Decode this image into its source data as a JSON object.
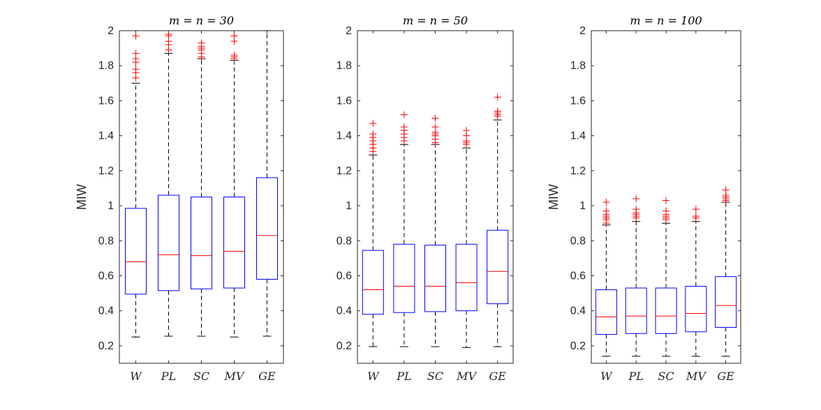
{
  "chart_data": [
    {
      "type": "boxplot",
      "title": "m = n = 30",
      "ylabel": "MIW",
      "ylim": [
        0.1,
        2.0
      ],
      "yticks": [
        0.2,
        0.4,
        0.6,
        0.8,
        1,
        1.2,
        1.4,
        1.6,
        1.8,
        2
      ],
      "categories": [
        "W",
        "PL",
        "SC",
        "MV",
        "GE"
      ],
      "boxes": [
        {
          "name": "W",
          "whisker_low": 0.25,
          "q1": 0.495,
          "median": 0.68,
          "q3": 0.985,
          "whisker_high": 1.7,
          "outliers": [
            1.73,
            1.76,
            1.78,
            1.82,
            1.84,
            1.87,
            1.97
          ]
        },
        {
          "name": "PL",
          "whisker_low": 0.255,
          "q1": 0.515,
          "median": 0.72,
          "q3": 1.06,
          "whisker_high": 1.87,
          "outliers": [
            1.89,
            1.92,
            1.94,
            1.97,
            1.98
          ]
        },
        {
          "name": "SC",
          "whisker_low": 0.255,
          "q1": 0.525,
          "median": 0.715,
          "q3": 1.05,
          "whisker_high": 1.84,
          "outliers": [
            1.85,
            1.87,
            1.89,
            1.9,
            1.91,
            1.93
          ]
        },
        {
          "name": "MV",
          "whisker_low": 0.25,
          "q1": 0.53,
          "median": 0.74,
          "q3": 1.05,
          "whisker_high": 1.83,
          "outliers": [
            1.84,
            1.85,
            1.86,
            1.94,
            1.97
          ]
        },
        {
          "name": "GE",
          "whisker_low": 0.255,
          "q1": 0.58,
          "median": 0.83,
          "q3": 1.16,
          "whisker_high": 2.0,
          "outliers": []
        }
      ]
    },
    {
      "type": "boxplot",
      "title": "m = n = 50",
      "ylabel": "",
      "ylim": [
        0.1,
        2.0
      ],
      "yticks": [
        0.2,
        0.4,
        0.6,
        0.8,
        1,
        1.2,
        1.4,
        1.6,
        1.8,
        2
      ],
      "categories": [
        "W",
        "PL",
        "SC",
        "MV",
        "GE"
      ],
      "boxes": [
        {
          "name": "W",
          "whisker_low": 0.195,
          "q1": 0.38,
          "median": 0.52,
          "q3": 0.745,
          "whisker_high": 1.29,
          "outliers": [
            1.31,
            1.33,
            1.35,
            1.37,
            1.39,
            1.41,
            1.47
          ]
        },
        {
          "name": "PL",
          "whisker_low": 0.195,
          "q1": 0.39,
          "median": 0.54,
          "q3": 0.78,
          "whisker_high": 1.35,
          "outliers": [
            1.37,
            1.39,
            1.41,
            1.43,
            1.45,
            1.52
          ]
        },
        {
          "name": "SC",
          "whisker_low": 0.195,
          "q1": 0.395,
          "median": 0.54,
          "q3": 0.775,
          "whisker_high": 1.35,
          "outliers": [
            1.36,
            1.38,
            1.4,
            1.41,
            1.42,
            1.45,
            1.5
          ]
        },
        {
          "name": "MV",
          "whisker_low": 0.19,
          "q1": 0.4,
          "median": 0.56,
          "q3": 0.78,
          "whisker_high": 1.33,
          "outliers": [
            1.35,
            1.36,
            1.37,
            1.4,
            1.43
          ]
        },
        {
          "name": "GE",
          "whisker_low": 0.195,
          "q1": 0.44,
          "median": 0.625,
          "q3": 0.86,
          "whisker_high": 1.49,
          "outliers": [
            1.51,
            1.52,
            1.53,
            1.54,
            1.62
          ]
        }
      ]
    },
    {
      "type": "boxplot",
      "title": "m = n = 100",
      "ylabel": "MIW",
      "ylim": [
        0.1,
        2.0
      ],
      "yticks": [
        0.2,
        0.4,
        0.6,
        0.8,
        1,
        1.2,
        1.4,
        1.6,
        1.8,
        2
      ],
      "categories": [
        "W",
        "PL",
        "SC",
        "MV",
        "GE"
      ],
      "boxes": [
        {
          "name": "W",
          "whisker_low": 0.14,
          "q1": 0.265,
          "median": 0.365,
          "q3": 0.52,
          "whisker_high": 0.89,
          "outliers": [
            0.9,
            0.92,
            0.93,
            0.94,
            0.95,
            0.97,
            1.02
          ]
        },
        {
          "name": "PL",
          "whisker_low": 0.14,
          "q1": 0.27,
          "median": 0.37,
          "q3": 0.53,
          "whisker_high": 0.91,
          "outliers": [
            0.93,
            0.94,
            0.95,
            0.96,
            0.98,
            1.04
          ]
        },
        {
          "name": "SC",
          "whisker_low": 0.14,
          "q1": 0.27,
          "median": 0.37,
          "q3": 0.53,
          "whisker_high": 0.9,
          "outliers": [
            0.92,
            0.93,
            0.94,
            0.95,
            0.97,
            1.03
          ]
        },
        {
          "name": "MV",
          "whisker_low": 0.14,
          "q1": 0.28,
          "median": 0.385,
          "q3": 0.54,
          "whisker_high": 0.91,
          "outliers": [
            0.93,
            0.94,
            0.98
          ]
        },
        {
          "name": "GE",
          "whisker_low": 0.14,
          "q1": 0.305,
          "median": 0.43,
          "q3": 0.595,
          "whisker_high": 1.02,
          "outliers": [
            1.03,
            1.04,
            1.05,
            1.06,
            1.09
          ]
        }
      ]
    }
  ],
  "colors": {
    "box": "#0000ff",
    "median": "#ff0000",
    "outlier": "#ff0000",
    "whisker": "#000000",
    "axes": "#262626"
  }
}
